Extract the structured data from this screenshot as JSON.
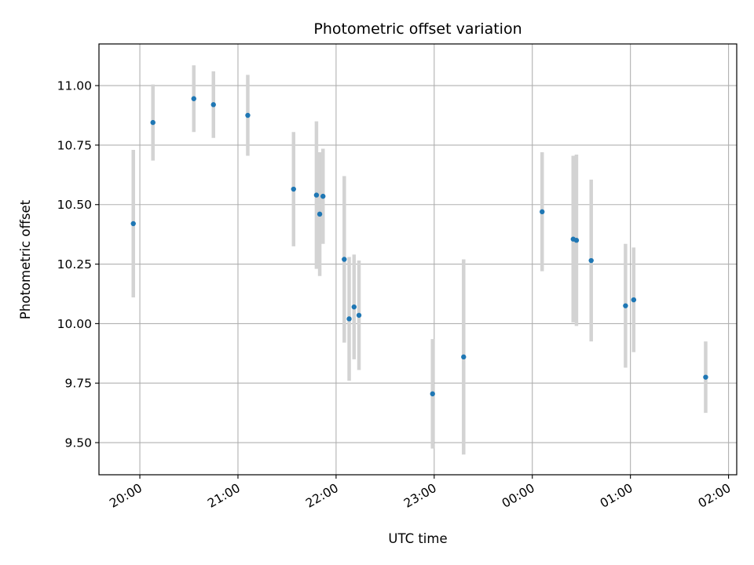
{
  "chart_data": {
    "type": "scatter",
    "title": "Photometric offset variation",
    "xlabel": "UTC time",
    "ylabel": "Photometric offset",
    "x_is_time": true,
    "xlim": [
      "19:35",
      "02:05"
    ],
    "ylim": [
      9.365,
      11.175
    ],
    "grid": true,
    "x_ticks": [
      "20:00",
      "21:00",
      "22:00",
      "23:00",
      "00:00",
      "01:00",
      "02:00"
    ],
    "y_ticks": [
      "9.50",
      "9.75",
      "10.00",
      "10.25",
      "10.50",
      "10.75",
      "11.00"
    ],
    "marker_color": "#1f77b4",
    "errorbar_color": "#d3d3d3",
    "series": [
      {
        "points": [
          {
            "time": "19:56",
            "y": 10.42,
            "err": 0.31
          },
          {
            "time": "20:08",
            "y": 10.845,
            "err": 0.16
          },
          {
            "time": "20:33",
            "y": 10.945,
            "err": 0.14
          },
          {
            "time": "20:45",
            "y": 10.92,
            "err": 0.14
          },
          {
            "time": "21:06",
            "y": 10.875,
            "err": 0.17
          },
          {
            "time": "21:34",
            "y": 10.565,
            "err": 0.24
          },
          {
            "time": "21:48",
            "y": 10.54,
            "err": 0.31
          },
          {
            "time": "21:50",
            "y": 10.46,
            "err": 0.26
          },
          {
            "time": "21:52",
            "y": 10.535,
            "err": 0.2
          },
          {
            "time": "22:05",
            "y": 10.27,
            "err": 0.35
          },
          {
            "time": "22:08",
            "y": 10.02,
            "err": 0.26
          },
          {
            "time": "22:11",
            "y": 10.07,
            "err": 0.22
          },
          {
            "time": "22:14",
            "y": 10.035,
            "err": 0.23
          },
          {
            "time": "22:59",
            "y": 9.705,
            "err": 0.23
          },
          {
            "time": "23:18",
            "y": 9.86,
            "err": 0.41
          },
          {
            "time": "00:06",
            "y": 10.47,
            "err": 0.25
          },
          {
            "time": "00:25",
            "y": 10.355,
            "err": 0.35
          },
          {
            "time": "00:27",
            "y": 10.35,
            "err": 0.36
          },
          {
            "time": "00:36",
            "y": 10.265,
            "err": 0.34
          },
          {
            "time": "00:57",
            "y": 10.075,
            "err": 0.26
          },
          {
            "time": "01:02",
            "y": 10.1,
            "err": 0.22
          },
          {
            "time": "01:46",
            "y": 9.775,
            "err": 0.15
          }
        ]
      }
    ]
  }
}
